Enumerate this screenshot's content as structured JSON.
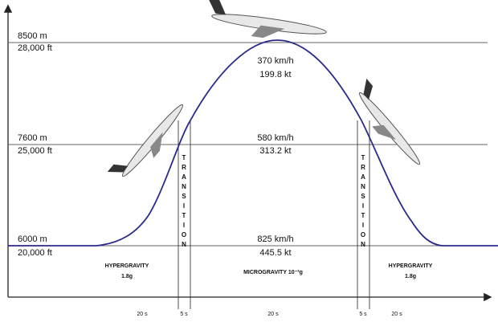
{
  "levels": [
    {
      "altitude_m": "8500 m",
      "altitude_ft": "28,000 ft",
      "speed_kmh": "370 km/h",
      "speed_kt": "199.8 kt"
    },
    {
      "altitude_m": "7600 m",
      "altitude_ft": "25,000 ft",
      "speed_kmh": "580 km/h",
      "speed_kt": "313.2 kt"
    },
    {
      "altitude_m": "6000 m",
      "altitude_ft": "20,000 ft",
      "speed_kmh": "825 km/h",
      "speed_kt": "445.5 kt"
    }
  ],
  "transition": "TRANSITION",
  "phases": [
    {
      "name": "HYPERGRAVITY",
      "g": "1.8g"
    },
    {
      "name": "MICROGRAVITY 10⁻²g"
    },
    {
      "name": "HYPERGRAVITY",
      "g": "1.8g"
    }
  ],
  "times": [
    "20 s",
    "5 s",
    "20 s",
    "5 s",
    "20 s"
  ]
}
